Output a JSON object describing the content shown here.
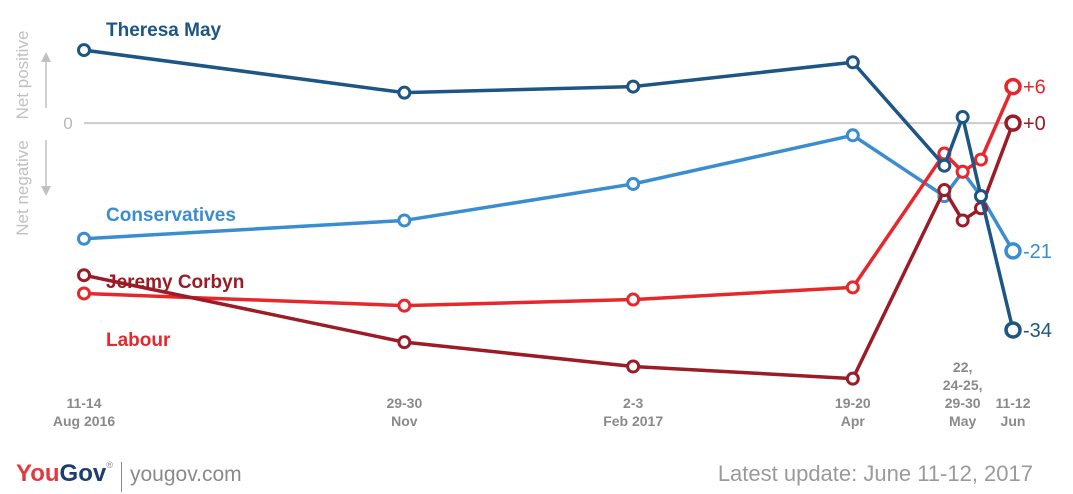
{
  "brand": {
    "logo_text_you": "You",
    "logo_text_gov": "Gov",
    "trademark": "®",
    "site": "yougov.com"
  },
  "updated": "Latest update: June 11-12, 2017",
  "colors": {
    "may": "#1d5585",
    "conservatives": "#3a8dcf",
    "corbyn": "#9b1b27",
    "labour": "#e6282d",
    "axis": "#cccccc",
    "tick_text": "#8a8a8a"
  },
  "chart_data": {
    "type": "line",
    "ylabel_positive": "Net positive",
    "ylabel_negative": "Net negative",
    "zero_label": "0",
    "ylim": [
      -46,
      13
    ],
    "x_ticks": [
      {
        "x": 0,
        "lines": [
          "11-14",
          "Aug 2016"
        ]
      },
      {
        "x": 3.5,
        "lines": [
          "29-30",
          "Nov"
        ]
      },
      {
        "x": 6,
        "lines": [
          "2-3",
          "Feb 2017"
        ]
      },
      {
        "x": 8.4,
        "lines": [
          "19-20",
          "Apr"
        ]
      },
      {
        "x": 9.6,
        "lines": [
          "22,",
          "24-25,",
          "29-30",
          "May"
        ]
      },
      {
        "x": 10.15,
        "lines": [
          "11-12",
          "Jun"
        ]
      }
    ],
    "series": [
      {
        "name": "Theresa May",
        "color": "#1d5585",
        "x": [
          0,
          3.5,
          6,
          8.4,
          9.4,
          9.6,
          9.8,
          10.15
        ],
        "values": [
          12,
          5,
          6,
          10,
          -7,
          1,
          -12,
          -34
        ],
        "end_label": "-34"
      },
      {
        "name": "Conservatives",
        "color": "#3a8dcf",
        "x": [
          0,
          3.5,
          6,
          8.4,
          9.4,
          9.6,
          9.8,
          10.15
        ],
        "values": [
          -19,
          -16,
          -10,
          -2,
          -12,
          -8,
          -12,
          -21
        ],
        "end_label": "-21"
      },
      {
        "name": "Jeremy Corbyn",
        "color": "#9b1b27",
        "x": [
          0,
          3.5,
          6,
          8.4,
          9.4,
          9.6,
          9.8,
          10.15
        ],
        "values": [
          -25,
          -36,
          -40,
          -42,
          -11,
          -16,
          -14,
          0
        ],
        "end_label": "+0"
      },
      {
        "name": "Labour",
        "color": "#e6282d",
        "x": [
          0,
          3.5,
          6,
          8.4,
          9.4,
          9.6,
          9.8,
          10.15
        ],
        "values": [
          -28,
          -30,
          -29,
          -27,
          -5,
          -8,
          -6,
          6
        ],
        "end_label": "+6"
      }
    ]
  }
}
